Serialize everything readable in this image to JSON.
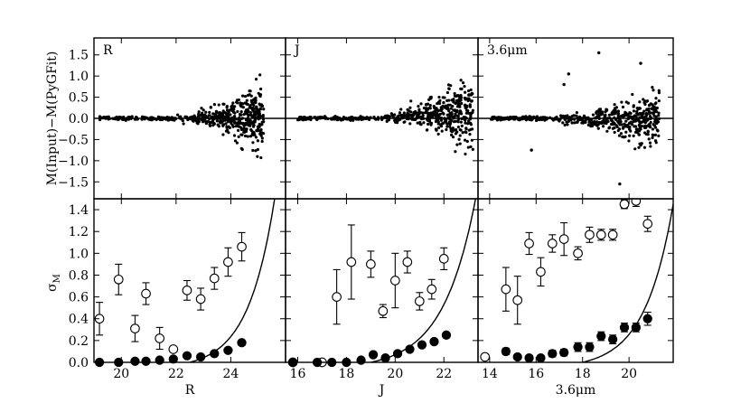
{
  "figure": {
    "top_ylabel": "M(Input)−M(PyGFit)",
    "bottom_ylabel": "σ",
    "bottom_ylabel_sub": "M"
  },
  "chart_data": [
    {
      "type": "scatter",
      "panel": "R-residuals",
      "label": "R",
      "ylabel": "M(Input)−M(PyGFit)",
      "xlim": [
        19,
        26
      ],
      "ylim": [
        -1.9,
        1.9
      ],
      "yticks": [
        1.5,
        1.0,
        0.5,
        0.0,
        -0.5,
        -1.0,
        -1.5
      ],
      "ytick_labels": [
        "1.5",
        "1.0",
        "0.5",
        "0.0",
        "−0.5",
        "−1.0",
        "−1.5"
      ],
      "reference_line_y": 0.0,
      "description": "Residual cloud: tight near 0 from R≈19–22, broadening to about ±0.8 by R≈24–25"
    },
    {
      "type": "scatter",
      "panel": "J-residuals",
      "label": "J",
      "xlim": [
        15.5,
        23.4
      ],
      "ylim": [
        -1.9,
        1.9
      ],
      "reference_line_y": 0.0,
      "description": "Residual cloud: tight near 0 from J≈16–19, broadening to about +1.8/−0.9 by J≈22–23"
    },
    {
      "type": "scatter",
      "panel": "3.6um-residuals",
      "label": "3.6μm",
      "xlim": [
        13.5,
        21.9
      ],
      "ylim": [
        -1.9,
        1.9
      ],
      "reference_line_y": 0.0,
      "description": "Residual cloud: tight near 0 from 14–16, broadening to about ±1.5 by 19–21"
    },
    {
      "type": "scatter",
      "panel": "R-sigma",
      "xlabel": "R",
      "ylabel": "σM",
      "xlim": [
        19,
        26
      ],
      "ylim": [
        0,
        1.5
      ],
      "xticks": [
        20,
        22,
        24
      ],
      "yticks": [
        0.0,
        0.2,
        0.4,
        0.6,
        0.8,
        1.0,
        1.2,
        1.4
      ],
      "ytick_labels": [
        "0.0",
        "0.2",
        "0.4",
        "0.6",
        "0.8",
        "1.0",
        "1.2",
        "1.4"
      ],
      "series": [
        {
          "marker": "open-circle",
          "x": [
            19.2,
            19.9,
            20.5,
            20.9,
            21.4,
            21.9,
            22.4,
            22.9,
            23.4,
            23.9,
            24.4
          ],
          "y": [
            0.4,
            0.76,
            0.31,
            0.63,
            0.22,
            0.12,
            0.66,
            0.58,
            0.77,
            0.92,
            1.06
          ],
          "yerr": [
            0.15,
            0.14,
            0.12,
            0.1,
            0.1,
            0.0,
            0.09,
            0.1,
            0.1,
            0.13,
            0.13
          ]
        },
        {
          "marker": "filled-circle",
          "x": [
            19.2,
            19.9,
            20.5,
            20.9,
            21.4,
            21.9,
            22.4,
            22.9,
            23.4,
            23.9,
            24.4
          ],
          "y": [
            0.0,
            0.0,
            0.01,
            0.01,
            0.02,
            0.03,
            0.06,
            0.05,
            0.08,
            0.11,
            0.18
          ]
        }
      ],
      "curve": {
        "x0": 22.5,
        "y0": 0.0,
        "x1": 25.6,
        "y1": 1.5
      }
    },
    {
      "type": "scatter",
      "panel": "J-sigma",
      "xlabel": "J",
      "xlim": [
        15.5,
        23.4
      ],
      "ylim": [
        0,
        1.5
      ],
      "xticks": [
        16,
        18,
        20,
        22
      ],
      "series": [
        {
          "marker": "open-circle",
          "x": [
            15.8,
            17.0,
            17.6,
            18.2,
            19.0,
            19.5,
            20.0,
            20.5,
            21.0,
            21.5,
            22.0
          ],
          "y": [
            0.0,
            0.0,
            0.6,
            0.92,
            0.9,
            0.47,
            0.75,
            0.92,
            0.56,
            0.67,
            0.95
          ],
          "yerr": [
            0.0,
            0.0,
            0.25,
            0.34,
            0.12,
            0.06,
            0.25,
            0.1,
            0.08,
            0.09,
            0.1
          ]
        },
        {
          "marker": "filled-circle",
          "x": [
            15.8,
            16.8,
            17.4,
            18.0,
            18.6,
            19.1,
            19.6,
            20.1,
            20.6,
            21.1,
            21.6,
            22.1
          ],
          "y": [
            0.0,
            0.0,
            0.0,
            0.0,
            0.02,
            0.07,
            0.04,
            0.08,
            0.12,
            0.16,
            0.19,
            0.25
          ]
        }
      ],
      "curve": {
        "x0": 19.0,
        "y0": 0.0,
        "x1": 23.3,
        "y1": 1.5
      }
    },
    {
      "type": "scatter",
      "panel": "3.6um-sigma",
      "xlabel": "3.6μm",
      "xlim": [
        13.5,
        21.9
      ],
      "ylim": [
        0,
        1.5
      ],
      "xticks": [
        14,
        16,
        18,
        20
      ],
      "series": [
        {
          "marker": "open-circle",
          "x": [
            13.8,
            14.7,
            15.2,
            15.7,
            16.2,
            16.7,
            17.2,
            17.8,
            18.3,
            18.8,
            19.3,
            19.8,
            20.3,
            20.8
          ],
          "y": [
            0.05,
            0.67,
            0.57,
            1.09,
            0.83,
            1.09,
            1.13,
            1.0,
            1.17,
            1.17,
            1.17,
            1.45,
            1.48,
            1.27
          ],
          "yerr": [
            0.0,
            0.2,
            0.22,
            0.1,
            0.13,
            0.08,
            0.15,
            0.06,
            0.07,
            0.05,
            0.05,
            0.04,
            0.05,
            0.07
          ]
        },
        {
          "marker": "filled-circle",
          "x": [
            14.7,
            15.2,
            15.7,
            16.2,
            16.7,
            17.2,
            17.8,
            18.3,
            18.8,
            19.3,
            19.8,
            20.3,
            20.8
          ],
          "y": [
            0.1,
            0.05,
            0.04,
            0.04,
            0.08,
            0.09,
            0.14,
            0.14,
            0.24,
            0.21,
            0.32,
            0.32,
            0.4
          ],
          "yerr": [
            0.03,
            0.02,
            0.02,
            0.02,
            0.03,
            0.03,
            0.04,
            0.04,
            0.04,
            0.04,
            0.04,
            0.04,
            0.06
          ]
        }
      ],
      "curve": {
        "x0": 18.0,
        "y0": 0.0,
        "x1": 21.9,
        "y1": 1.45
      }
    }
  ]
}
